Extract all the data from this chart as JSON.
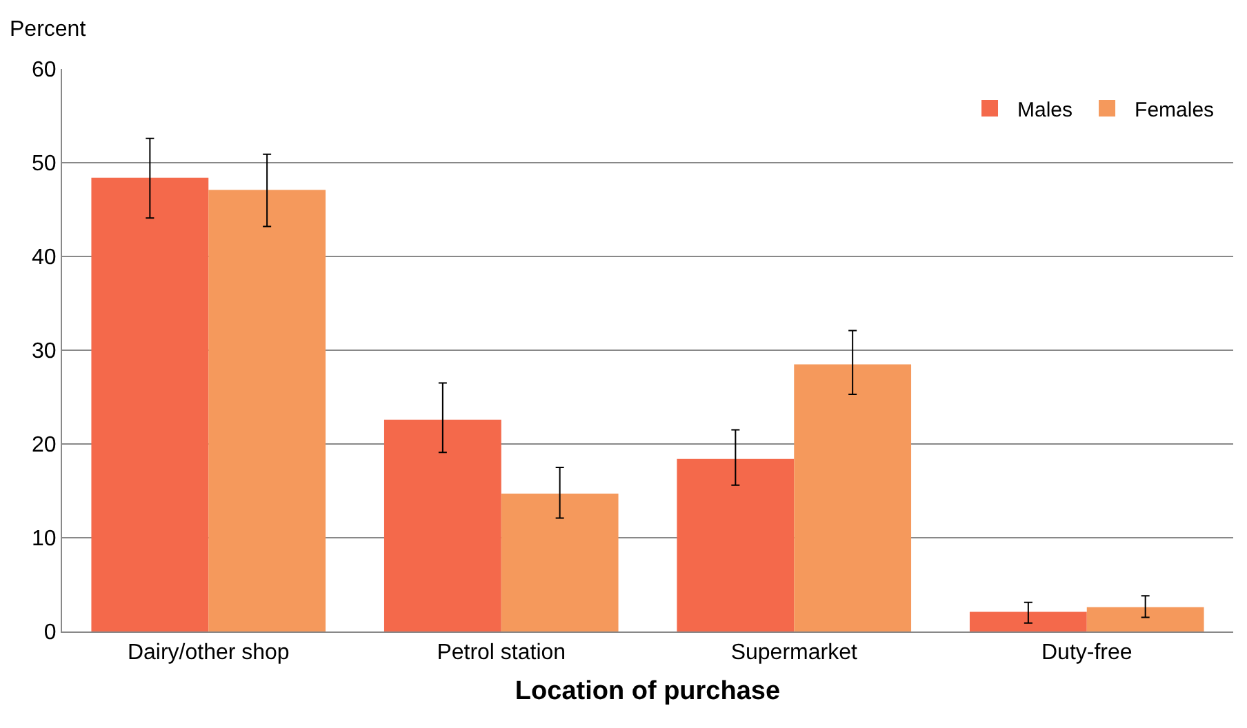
{
  "chart_data": {
    "type": "bar",
    "xlabel": "Location of purchase",
    "ylabel": "Percent",
    "categories": [
      "Dairy/other shop",
      "Petrol station",
      "Supermarket",
      "Duty-free"
    ],
    "series": [
      {
        "name": "Males",
        "color": "#f4694b",
        "values": [
          48.4,
          22.6,
          18.4,
          2.1
        ],
        "errors": [
          [
            44.1,
            52.6
          ],
          [
            19.1,
            26.5
          ],
          [
            15.6,
            21.5
          ],
          [
            0.9,
            3.1
          ]
        ]
      },
      {
        "name": "Females",
        "color": "#f5995c",
        "values": [
          47.1,
          14.7,
          28.5,
          2.6
        ],
        "errors": [
          [
            43.2,
            50.9
          ],
          [
            12.1,
            17.5
          ],
          [
            25.3,
            32.1
          ],
          [
            1.5,
            3.8
          ]
        ]
      }
    ],
    "ylim": [
      0,
      60
    ],
    "yticks": [
      0,
      10,
      20,
      30,
      40,
      50,
      60
    ],
    "grid": "y",
    "legend": "top right"
  }
}
